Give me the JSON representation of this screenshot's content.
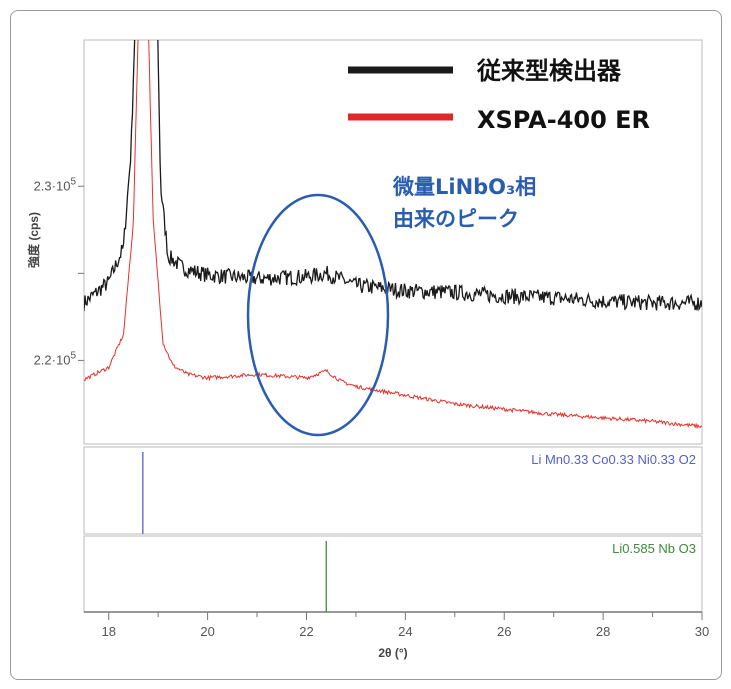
{
  "chart_data": {
    "type": "line",
    "xlabel": "2θ (°)",
    "ylabel": "強度 (cps)",
    "xlim": [
      17.5,
      30
    ],
    "ylim": [
      215200,
      238400
    ],
    "x_ticks": [
      18,
      20,
      22,
      24,
      26,
      28,
      30
    ],
    "x_tick_labels": [
      "18",
      "20",
      "22",
      "24",
      "26",
      "28",
      "30"
    ],
    "y_ticks": [
      220000,
      225000,
      230000
    ],
    "y_tick_labels": [
      {
        "base": "2.2·10",
        "exp": "5"
      },
      {
        "base": "",
        "exp": ""
      },
      {
        "base": "2.3·10",
        "exp": "5"
      }
    ],
    "grid": false,
    "legend_position": "top-right",
    "series": [
      {
        "name": "従来型検出器",
        "color": "#1a1a1a",
        "x": [
          17.5,
          18.0,
          18.3,
          18.45,
          18.6,
          18.95,
          19.05,
          19.2,
          19.5,
          20,
          21,
          22,
          22.4,
          23,
          24,
          25,
          26,
          27,
          28,
          29,
          30
        ],
        "y": [
          223300,
          224500,
          226500,
          232000,
          245000,
          245000,
          230000,
          226000,
          225300,
          224900,
          224700,
          224800,
          225000,
          224300,
          224000,
          223900,
          223700,
          223600,
          223400,
          223300,
          223300
        ]
      },
      {
        "name": "XSPA-400 ER",
        "color": "#e8302a",
        "x": [
          17.5,
          18.0,
          18.3,
          18.5,
          18.65,
          18.75,
          18.9,
          19.1,
          19.3,
          19.6,
          20,
          21,
          22,
          22.4,
          22.7,
          23,
          24,
          25,
          26,
          27,
          28,
          29,
          30
        ],
        "y": [
          218900,
          219600,
          221500,
          228000,
          245000,
          245000,
          228000,
          221000,
          219700,
          219200,
          219000,
          219200,
          219000,
          219400,
          218800,
          218500,
          218000,
          217500,
          217200,
          216900,
          216700,
          216500,
          216200
        ]
      }
    ],
    "reference_patterns": [
      {
        "label": "Li Mn0.33 Co0.33 Ni0.33 O2",
        "color": "#5560c8",
        "x": 18.69
      },
      {
        "label": "Li0.585 Nb O3",
        "color": "#3f8a3f",
        "x": 22.4
      }
    ],
    "annotation": {
      "line1": "微量LiNbO₃相",
      "line2": "由来のピーク",
      "color": "#2a5cb0"
    }
  }
}
